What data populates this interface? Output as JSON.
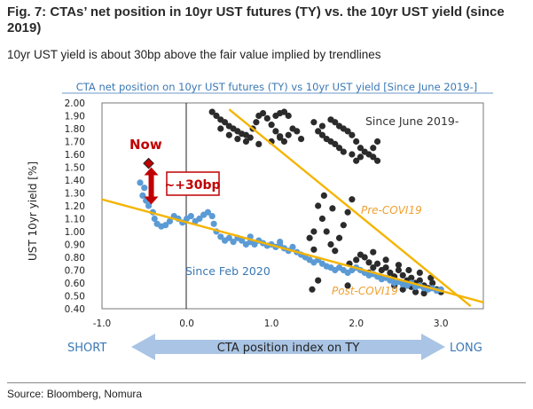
{
  "header": {
    "title": "Fig. 7: CTAs’ net position in 10yr UST futures (TY) vs. the 10yr UST yield (since 2019)",
    "subtitle": "10yr UST yield is about 30bp above the fair value implied by trendlines"
  },
  "footer": {
    "source": "Source: Bloomberg, Nomura"
  },
  "colors": {
    "accent_blue": "#3a78b5",
    "trend_orange": "#f5b400",
    "dark_points": "#2b2b2b",
    "blue_points": "#5b9bd5",
    "now_red": "#c00000",
    "arrow_fill": "#a9c4e4"
  },
  "chart_data": {
    "type": "scatter",
    "title": "CTA net  position on 10yr UST futures (TY) vs 10yr UST yield [Since June 2019-]",
    "ylabel": "UST 10yr yield [%]",
    "xlabel": "CTA position index on TY",
    "xlim": [
      -1.0,
      3.5
    ],
    "ylim": [
      0.4,
      2.0
    ],
    "x_ticks": [
      "-1.0",
      "0.0",
      "1.0",
      "2.0",
      "3.0"
    ],
    "x_tick_values": [
      -1.0,
      0.0,
      1.0,
      2.0,
      3.0
    ],
    "y_ticks": [
      "0.40",
      "0.50",
      "0.60",
      "0.70",
      "0.80",
      "0.90",
      "1.00",
      "1.10",
      "1.20",
      "1.30",
      "1.40",
      "1.50",
      "1.60",
      "1.70",
      "1.80",
      "1.90",
      "2.00"
    ],
    "y_tick_values": [
      0.4,
      0.5,
      0.6,
      0.7,
      0.8,
      0.9,
      1.0,
      1.1,
      1.2,
      1.3,
      1.4,
      1.5,
      1.6,
      1.7,
      1.8,
      1.9,
      2.0
    ],
    "axis_end_labels": {
      "left": "SHORT",
      "right": "LONG"
    },
    "series": [
      {
        "name": "Since June 2019- (Pre-COVID19)",
        "color": "#2b2b2b",
        "points": [
          [
            0.3,
            1.93
          ],
          [
            0.35,
            1.9
          ],
          [
            0.4,
            1.87
          ],
          [
            0.45,
            1.85
          ],
          [
            0.5,
            1.82
          ],
          [
            0.55,
            1.8
          ],
          [
            0.6,
            1.78
          ],
          [
            0.65,
            1.76
          ],
          [
            0.7,
            1.75
          ],
          [
            0.75,
            1.73
          ],
          [
            0.78,
            1.8
          ],
          [
            0.82,
            1.85
          ],
          [
            0.85,
            1.9
          ],
          [
            0.9,
            1.92
          ],
          [
            0.95,
            1.88
          ],
          [
            1.0,
            1.83
          ],
          [
            1.05,
            1.78
          ],
          [
            1.1,
            1.73
          ],
          [
            1.15,
            1.7
          ],
          [
            1.2,
            1.75
          ],
          [
            1.25,
            1.8
          ],
          [
            1.3,
            1.78
          ],
          [
            1.35,
            1.72
          ],
          [
            0.4,
            1.8
          ],
          [
            0.5,
            1.75
          ],
          [
            0.6,
            1.72
          ],
          [
            0.7,
            1.7
          ],
          [
            0.85,
            1.68
          ],
          [
            1.0,
            1.7
          ],
          [
            1.1,
            1.74
          ],
          [
            1.2,
            1.9
          ],
          [
            1.15,
            1.93
          ],
          [
            1.1,
            1.92
          ],
          [
            1.05,
            1.9
          ],
          [
            1.7,
            1.87
          ],
          [
            1.75,
            1.85
          ],
          [
            1.8,
            1.82
          ],
          [
            1.85,
            1.8
          ],
          [
            1.9,
            1.78
          ],
          [
            1.95,
            1.75
          ],
          [
            2.0,
            1.7
          ],
          [
            2.05,
            1.65
          ],
          [
            2.1,
            1.62
          ],
          [
            2.15,
            1.6
          ],
          [
            2.2,
            1.58
          ],
          [
            2.25,
            1.55
          ],
          [
            1.6,
            1.75
          ],
          [
            1.65,
            1.72
          ],
          [
            1.7,
            1.7
          ],
          [
            1.75,
            1.68
          ],
          [
            1.8,
            1.65
          ],
          [
            1.85,
            1.62
          ],
          [
            1.95,
            1.6
          ],
          [
            2.05,
            1.58
          ],
          [
            1.55,
            1.78
          ],
          [
            1.6,
            1.82
          ],
          [
            2.2,
            1.65
          ],
          [
            2.25,
            1.7
          ],
          [
            2.0,
            1.55
          ],
          [
            1.5,
            1.85
          ],
          [
            1.55,
            1.2
          ],
          [
            1.6,
            1.1
          ],
          [
            1.65,
            1.0
          ],
          [
            1.7,
            0.9
          ],
          [
            1.75,
            0.85
          ],
          [
            1.8,
            0.95
          ],
          [
            1.85,
            1.05
          ],
          [
            1.9,
            1.15
          ],
          [
            1.95,
            1.25
          ],
          [
            1.62,
            1.28
          ],
          [
            1.72,
            1.18
          ],
          [
            1.5,
            1.0
          ],
          [
            1.45,
            0.95
          ],
          [
            1.5,
            0.86
          ],
          [
            1.48,
            0.55
          ],
          [
            1.55,
            0.62
          ],
          [
            1.9,
            0.58
          ],
          [
            1.92,
            0.75
          ],
          [
            2.0,
            0.78
          ],
          [
            2.05,
            0.82
          ],
          [
            2.1,
            0.8
          ],
          [
            2.15,
            0.76
          ],
          [
            2.2,
            0.72
          ],
          [
            2.25,
            0.75
          ],
          [
            2.3,
            0.7
          ],
          [
            2.35,
            0.72
          ],
          [
            2.4,
            0.68
          ],
          [
            2.45,
            0.65
          ],
          [
            2.5,
            0.7
          ],
          [
            2.55,
            0.66
          ],
          [
            2.6,
            0.62
          ],
          [
            2.65,
            0.64
          ],
          [
            2.7,
            0.6
          ],
          [
            2.75,
            0.62
          ],
          [
            2.8,
            0.58
          ],
          [
            2.85,
            0.56
          ],
          [
            2.9,
            0.6
          ],
          [
            2.95,
            0.55
          ],
          [
            3.0,
            0.53
          ],
          [
            2.2,
            0.84
          ],
          [
            2.35,
            0.78
          ],
          [
            2.5,
            0.74
          ],
          [
            2.62,
            0.7
          ],
          [
            2.75,
            0.68
          ],
          [
            2.88,
            0.64
          ],
          [
            2.45,
            0.58
          ],
          [
            2.55,
            0.55
          ],
          [
            2.65,
            0.57
          ],
          [
            2.3,
            0.64
          ],
          [
            2.15,
            0.68
          ],
          [
            2.7,
            0.53
          ],
          [
            2.8,
            0.52
          ]
        ]
      },
      {
        "name": "Since Feb 2020 (Post-COVID19)",
        "color": "#5b9bd5",
        "points": [
          [
            -0.55,
            1.38
          ],
          [
            -0.5,
            1.34
          ],
          [
            -0.52,
            1.28
          ],
          [
            -0.48,
            1.24
          ],
          [
            -0.45,
            1.2
          ],
          [
            -0.4,
            1.15
          ],
          [
            -0.38,
            1.1
          ],
          [
            -0.35,
            1.06
          ],
          [
            -0.3,
            1.04
          ],
          [
            -0.25,
            1.05
          ],
          [
            -0.2,
            1.08
          ],
          [
            -0.15,
            1.12
          ],
          [
            -0.1,
            1.1
          ],
          [
            -0.05,
            1.07
          ],
          [
            0.0,
            1.1
          ],
          [
            0.05,
            1.12
          ],
          [
            0.1,
            1.08
          ],
          [
            0.15,
            1.1
          ],
          [
            0.2,
            1.13
          ],
          [
            0.25,
            1.15
          ],
          [
            0.3,
            1.12
          ],
          [
            0.32,
            1.06
          ],
          [
            0.35,
            1.0
          ],
          [
            0.4,
            0.96
          ],
          [
            0.45,
            0.93
          ],
          [
            0.5,
            0.95
          ],
          [
            0.55,
            0.92
          ],
          [
            0.6,
            0.95
          ],
          [
            0.65,
            0.93
          ],
          [
            0.7,
            0.9
          ],
          [
            0.75,
            0.92
          ],
          [
            0.8,
            0.9
          ],
          [
            0.85,
            0.93
          ],
          [
            0.9,
            0.91
          ],
          [
            0.95,
            0.89
          ],
          [
            1.0,
            0.9
          ],
          [
            1.05,
            0.88
          ],
          [
            1.1,
            0.9
          ],
          [
            1.15,
            0.87
          ],
          [
            1.2,
            0.85
          ],
          [
            1.25,
            0.88
          ],
          [
            1.3,
            0.84
          ],
          [
            1.35,
            0.82
          ],
          [
            1.4,
            0.8
          ],
          [
            1.45,
            0.78
          ],
          [
            1.5,
            0.76
          ],
          [
            1.55,
            0.78
          ],
          [
            1.6,
            0.75
          ],
          [
            1.65,
            0.73
          ],
          [
            1.7,
            0.72
          ],
          [
            1.75,
            0.7
          ],
          [
            1.8,
            0.72
          ],
          [
            1.85,
            0.7
          ],
          [
            1.9,
            0.68
          ],
          [
            1.95,
            0.7
          ],
          [
            2.0,
            0.72
          ],
          [
            2.05,
            0.7
          ],
          [
            2.1,
            0.68
          ],
          [
            2.15,
            0.66
          ],
          [
            2.2,
            0.67
          ],
          [
            2.25,
            0.65
          ],
          [
            2.3,
            0.63
          ],
          [
            2.35,
            0.64
          ],
          [
            2.4,
            0.62
          ],
          [
            2.45,
            0.6
          ],
          [
            2.5,
            0.61
          ],
          [
            2.55,
            0.59
          ],
          [
            2.6,
            0.58
          ],
          [
            2.65,
            0.6
          ],
          [
            2.7,
            0.57
          ],
          [
            2.75,
            0.58
          ],
          [
            2.8,
            0.56
          ],
          [
            2.85,
            0.55
          ],
          [
            2.9,
            0.56
          ],
          [
            2.95,
            0.54
          ],
          [
            3.0,
            0.55
          ],
          [
            1.1,
            0.92
          ],
          [
            0.75,
            0.96
          ]
        ]
      }
    ],
    "trendlines": [
      {
        "name": "Post-COVID19 trendline",
        "from": [
          -1.0,
          1.25
        ],
        "to": [
          3.5,
          0.45
        ],
        "color": "#f5b400"
      },
      {
        "name": "Pre-COVID19 trendline",
        "from": [
          0.5,
          1.95
        ],
        "to": [
          3.35,
          0.42
        ],
        "color": "#f5b400"
      }
    ],
    "now_point": {
      "x": -0.45,
      "y": 1.53,
      "label": "Now"
    },
    "annotations": {
      "since_june": "Since June 2019-",
      "since_feb": "Since Feb 2020",
      "pre_covid": "Pre-COVI19",
      "post_covid": "Post-COVI19",
      "premium": "~+30bp",
      "premium_from": 1.5,
      "premium_to": 1.21
    }
  }
}
